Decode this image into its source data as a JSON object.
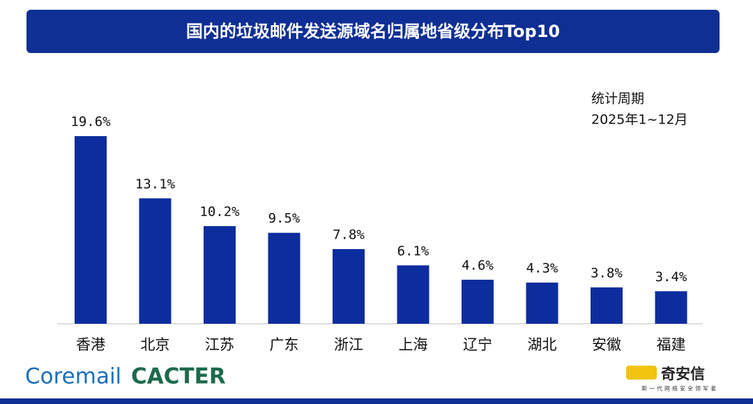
{
  "chart_data": {
    "type": "bar",
    "title": "国内的垃圾邮件发送源域名归属地省级分布Top10",
    "categories": [
      "香港",
      "北京",
      "江苏",
      "广东",
      "浙江",
      "上海",
      "辽宁",
      "湖北",
      "安徽",
      "福建"
    ],
    "values": [
      19.6,
      13.1,
      10.2,
      9.5,
      7.8,
      6.1,
      4.6,
      4.3,
      3.8,
      3.4
    ],
    "value_labels": [
      "19.6%",
      "13.1%",
      "10.2%",
      "9.5%",
      "7.8%",
      "6.1%",
      "4.6%",
      "4.3%",
      "3.8%",
      "3.4%"
    ],
    "color": "#0c2d9e",
    "annotations": [
      "统计周期",
      "2025年1~12月"
    ]
  },
  "logos": {
    "coremail": "Coremail",
    "cacter": "CACTER",
    "qianxin": "奇安信",
    "qianxin_slogan": "新一代网络安全领军者"
  }
}
